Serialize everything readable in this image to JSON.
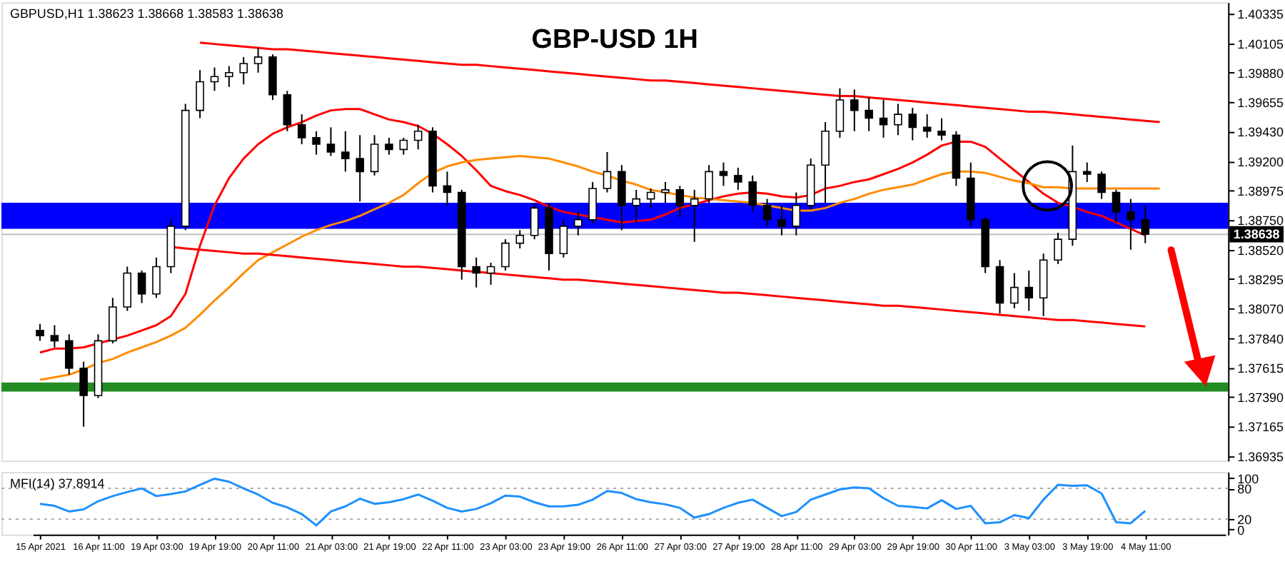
{
  "chart_data": [
    {
      "type": "candlestick",
      "title": "GBP-USD 1H",
      "annotations": [
        "GBPUSD,H1  1.38623 1.38668 1.38583 1.38638"
      ],
      "color": "#000000",
      "categories": [
        null,
        null,
        null,
        null,
        null,
        null,
        null,
        null,
        null,
        null,
        null,
        null,
        null,
        null,
        null,
        null,
        null,
        null,
        null,
        null,
        null,
        null,
        null,
        null,
        null,
        null,
        null,
        null,
        null,
        null,
        null,
        null,
        null,
        null,
        null,
        null,
        null,
        null,
        null,
        null,
        null,
        null,
        null,
        null,
        null,
        null,
        null,
        null,
        null,
        null,
        null,
        null,
        null,
        null,
        null,
        null,
        null,
        null,
        null,
        null,
        null,
        null,
        null,
        null,
        null,
        null,
        null,
        null,
        null,
        null,
        null,
        null,
        null,
        null,
        null,
        null,
        null,
        null,
        null,
        null,
        null,
        null
      ],
      "ohlc": [
        [
          1.379,
          1.3795,
          1.3782,
          1.3786
        ],
        [
          1.3786,
          1.3794,
          1.3777,
          1.3782
        ],
        [
          1.3782,
          1.3787,
          1.3756,
          1.3761
        ],
        [
          1.3761,
          1.3766,
          1.3716,
          1.374
        ],
        [
          1.374,
          1.3787,
          1.3738,
          1.3782
        ],
        [
          1.3782,
          1.3815,
          1.378,
          1.3808
        ],
        [
          1.3808,
          1.3839,
          1.3805,
          1.3834
        ],
        [
          1.3834,
          1.3836,
          1.3811,
          1.3818
        ],
        [
          1.3818,
          1.3846,
          1.3815,
          1.3839
        ],
        [
          1.3839,
          1.3875,
          1.3834,
          1.387
        ],
        [
          1.387,
          1.3964,
          1.3867,
          1.3959
        ],
        [
          1.3959,
          1.399,
          1.3953,
          1.3981
        ],
        [
          1.3981,
          1.3992,
          1.3974,
          1.3985
        ],
        [
          1.3985,
          1.3993,
          1.3977,
          1.3988
        ],
        [
          1.3988,
          1.4,
          1.3979,
          1.3995
        ],
        [
          1.3995,
          1.4007,
          1.3988,
          1.4
        ],
        [
          1.4,
          1.4002,
          1.3967,
          1.3971
        ],
        [
          1.3971,
          1.3974,
          1.3943,
          1.3948
        ],
        [
          1.3948,
          1.3956,
          1.3933,
          1.3938
        ],
        [
          1.3938,
          1.3943,
          1.3925,
          1.3933
        ],
        [
          1.3933,
          1.3946,
          1.3924,
          1.3927
        ],
        [
          1.3927,
          1.3943,
          1.3912,
          1.3922
        ],
        [
          1.3922,
          1.394,
          1.3889,
          1.3912
        ],
        [
          1.3912,
          1.394,
          1.3909,
          1.3933
        ],
        [
          1.3933,
          1.3938,
          1.3925,
          1.3929
        ],
        [
          1.3929,
          1.3938,
          1.3925,
          1.3936
        ],
        [
          1.3936,
          1.3948,
          1.3929,
          1.3943
        ],
        [
          1.3943,
          1.3946,
          1.3896,
          1.3901
        ],
        [
          1.3901,
          1.3912,
          1.3886,
          1.3896
        ],
        [
          1.3896,
          1.3898,
          1.3829,
          1.3839
        ],
        [
          1.3839,
          1.3846,
          1.3823,
          1.3834
        ],
        [
          1.3834,
          1.3842,
          1.3825,
          1.3839
        ],
        [
          1.3839,
          1.386,
          1.3836,
          1.3857
        ],
        [
          1.3857,
          1.3867,
          1.3853,
          1.3863
        ],
        [
          1.3863,
          1.3888,
          1.386,
          1.3884
        ],
        [
          1.3884,
          1.3888,
          1.3836,
          1.3849
        ],
        [
          1.3849,
          1.3875,
          1.3846,
          1.387
        ],
        [
          1.387,
          1.3881,
          1.3863,
          1.3875
        ],
        [
          1.3875,
          1.3904,
          1.3872,
          1.3899
        ],
        [
          1.3899,
          1.3927,
          1.3896,
          1.3912
        ],
        [
          1.3912,
          1.3917,
          1.3867,
          1.3886
        ],
        [
          1.3886,
          1.3898,
          1.3873,
          1.3891
        ],
        [
          1.3891,
          1.3899,
          1.3884,
          1.3896
        ],
        [
          1.3896,
          1.3904,
          1.3888,
          1.3898
        ],
        [
          1.3898,
          1.3901,
          1.3877,
          1.3886
        ],
        [
          1.3886,
          1.3898,
          1.3858,
          1.3891
        ],
        [
          1.3891,
          1.3917,
          1.3888,
          1.3912
        ],
        [
          1.3912,
          1.3919,
          1.3901,
          1.3909
        ],
        [
          1.3909,
          1.3915,
          1.3898,
          1.3904
        ],
        [
          1.3904,
          1.3909,
          1.3881,
          1.3886
        ],
        [
          1.3886,
          1.3891,
          1.387,
          1.3875
        ],
        [
          1.3875,
          1.3886,
          1.3863,
          1.387
        ],
        [
          1.387,
          1.3896,
          1.3863,
          1.3886
        ],
        [
          1.3886,
          1.3922,
          1.3883,
          1.3917
        ],
        [
          1.3917,
          1.395,
          1.3888,
          1.3943
        ],
        [
          1.3943,
          1.3976,
          1.3938,
          1.3967
        ],
        [
          1.3967,
          1.3975,
          1.3943,
          1.3959
        ],
        [
          1.3959,
          1.3969,
          1.3943,
          1.3953
        ],
        [
          1.3953,
          1.3967,
          1.3938,
          1.3948
        ],
        [
          1.3948,
          1.3964,
          1.394,
          1.3956
        ],
        [
          1.3956,
          1.3961,
          1.3936,
          1.3946
        ],
        [
          1.3946,
          1.3956,
          1.3938,
          1.3943
        ],
        [
          1.3943,
          1.3953,
          1.3936,
          1.394
        ],
        [
          1.394,
          1.3943,
          1.3901,
          1.3907
        ],
        [
          1.3907,
          1.3919,
          1.387,
          1.3875
        ],
        [
          1.3875,
          1.3877,
          1.3834,
          1.3839
        ],
        [
          1.3839,
          1.3844,
          1.3803,
          1.3811
        ],
        [
          1.3811,
          1.3834,
          1.3807,
          1.3823
        ],
        [
          1.3823,
          1.3836,
          1.3805,
          1.3815
        ],
        [
          1.3815,
          1.3849,
          1.3801,
          1.3844
        ],
        [
          1.3844,
          1.3865,
          1.3841,
          1.386
        ],
        [
          1.386,
          1.3932,
          1.3855,
          1.3912
        ],
        [
          1.3912,
          1.3919,
          1.3904,
          1.391
        ],
        [
          1.391,
          1.3912,
          1.3891,
          1.3896
        ],
        [
          1.3896,
          1.3898,
          1.3873,
          1.3881
        ],
        [
          1.3881,
          1.3891,
          1.3852,
          1.3875
        ],
        [
          1.3875,
          1.3886,
          1.3857,
          1.38638
        ],
        null,
        null,
        null,
        null,
        null
      ],
      "series": [
        {
          "type": "line",
          "color": "#ff0000",
          "values": [
            1.3773,
            1.3776,
            1.3776,
            1.3777,
            1.378,
            1.3783,
            1.3786,
            1.379,
            1.3794,
            1.3801,
            1.3818,
            1.3855,
            1.3886,
            1.3907,
            1.3922,
            1.3933,
            1.3941,
            1.3946,
            1.395,
            1.3955,
            1.3959,
            1.396,
            1.396,
            1.3956,
            1.3952,
            1.395,
            1.3947,
            1.3941,
            1.3933,
            1.3924,
            1.3913,
            1.3901,
            1.3897,
            1.3894,
            1.389,
            1.3885,
            1.3881,
            1.3879,
            1.3877,
            1.3875,
            1.3873,
            1.3874,
            1.3875,
            1.3879,
            1.3884,
            1.3887,
            1.389,
            1.3893,
            1.3895,
            1.3896,
            1.3895,
            1.3893,
            1.3892,
            1.3894,
            1.3899,
            1.3901,
            1.3904,
            1.3906,
            1.391,
            1.3914,
            1.3919,
            1.3925,
            1.3932,
            1.3935,
            1.3935,
            1.3931,
            1.3922,
            1.3913,
            1.3904,
            1.3895,
            1.3888,
            1.3885,
            1.3881,
            1.3878,
            1.3873,
            1.3868,
            1.3863,
            null,
            null,
            null,
            null,
            null
          ]
        },
        {
          "type": "line",
          "color": "#ff8c00",
          "values": [
            1.3752,
            1.3754,
            1.3756,
            1.376,
            1.3765,
            1.3768,
            1.3773,
            1.3777,
            1.3781,
            1.3786,
            1.3792,
            1.3802,
            1.3813,
            1.3823,
            1.3834,
            1.3844,
            1.385,
            1.3856,
            1.3862,
            1.3867,
            1.3871,
            1.3874,
            1.3878,
            1.3883,
            1.3888,
            1.3894,
            1.3903,
            1.3911,
            1.3916,
            1.3919,
            1.3921,
            1.3922,
            1.3923,
            1.3924,
            1.3923,
            1.3922,
            1.3919,
            1.3916,
            1.3912,
            1.3909,
            1.3905,
            1.3902,
            1.3898,
            1.3896,
            1.3894,
            1.3892,
            1.3891,
            1.389,
            1.3889,
            1.3888,
            1.3886,
            1.3884,
            1.3882,
            1.3882,
            1.3884,
            1.3888,
            1.3891,
            1.3895,
            1.3898,
            1.39,
            1.3902,
            1.3906,
            1.391,
            1.3912,
            1.3912,
            1.3911,
            1.3908,
            1.3905,
            1.3903,
            1.39,
            1.39,
            1.3899,
            1.3899,
            1.3899,
            1.3899,
            1.3899,
            1.3899,
            1.3899,
            null,
            null,
            null,
            null
          ]
        },
        {
          "type": "line",
          "color": "#ff0000",
          "values": [
            null,
            null,
            null,
            null,
            null,
            null,
            null,
            null,
            null,
            null,
            null,
            1.4011,
            1.401,
            1.4009,
            1.4008,
            1.4007,
            1.4006,
            1.4006,
            1.4005,
            1.4004,
            1.4003,
            1.4002,
            1.4001,
            1.4,
            1.3999,
            1.3998,
            1.3997,
            1.3996,
            1.3995,
            1.3994,
            1.3994,
            1.3993,
            1.3992,
            1.3991,
            1.399,
            1.3989,
            1.3988,
            1.3987,
            1.3986,
            1.3985,
            1.3984,
            1.3983,
            1.3982,
            1.3982,
            1.3981,
            1.398,
            1.3979,
            1.3978,
            1.3977,
            1.3976,
            1.3975,
            1.3974,
            1.3973,
            1.3972,
            1.3971,
            1.397,
            1.397,
            1.3969,
            1.3968,
            1.3967,
            1.3966,
            1.3965,
            1.3964,
            1.3963,
            1.3962,
            1.3961,
            1.396,
            1.3959,
            1.3958,
            1.3958,
            1.3957,
            1.3956,
            1.3955,
            1.3954,
            1.3953,
            1.3952,
            1.3951,
            1.395,
            null,
            null,
            null,
            null
          ]
        },
        {
          "type": "line",
          "color": "#ff0000",
          "values": [
            null,
            null,
            null,
            null,
            null,
            null,
            null,
            null,
            null,
            1.3854,
            1.3853,
            1.3852,
            1.3851,
            1.385,
            1.3849,
            1.3849,
            1.3848,
            1.3847,
            1.3846,
            1.3845,
            1.3844,
            1.3843,
            1.3842,
            1.3841,
            1.384,
            1.3839,
            1.3839,
            1.3838,
            1.3837,
            1.3836,
            1.3835,
            1.3834,
            1.3833,
            1.3832,
            1.3831,
            1.383,
            1.3829,
            1.3829,
            1.3828,
            1.3827,
            1.3826,
            1.3825,
            1.3824,
            1.3823,
            1.3822,
            1.3821,
            1.382,
            1.3819,
            1.3819,
            1.3818,
            1.3817,
            1.3816,
            1.3815,
            1.3814,
            1.3813,
            1.3812,
            1.3811,
            1.381,
            1.3809,
            1.3809,
            1.3808,
            1.3807,
            1.3806,
            1.3805,
            1.3804,
            1.3803,
            1.3802,
            1.3801,
            1.38,
            1.3799,
            1.3798,
            1.3798,
            1.3797,
            1.3796,
            1.3795,
            1.3794,
            1.3793,
            null,
            null,
            null,
            null,
            null
          ]
        }
      ],
      "ylim": [
        1.369,
        1.4042
      ],
      "yticks": [
        {
          "value": 1.40335,
          "label": "1.40335"
        },
        {
          "value": 1.40105,
          "label": "1.40105"
        },
        {
          "value": 1.3988,
          "label": "1.39880"
        },
        {
          "value": 1.39655,
          "label": "1.39655"
        },
        {
          "value": 1.3943,
          "label": "1.39430"
        },
        {
          "value": 1.392,
          "label": "1.39200"
        },
        {
          "value": 1.38975,
          "label": "1.38975"
        },
        {
          "value": 1.3875,
          "label": "1.38750"
        },
        {
          "value": 1.3852,
          "label": "1.38520"
        },
        {
          "value": 1.38295,
          "label": "1.38295"
        },
        {
          "value": 1.3807,
          "label": "1.38070"
        },
        {
          "value": 1.3784,
          "label": "1.37840"
        },
        {
          "value": 1.37615,
          "label": "1.37615"
        },
        {
          "value": 1.3739,
          "label": "1.37390"
        },
        {
          "value": 1.37165,
          "label": "1.37165"
        },
        {
          "value": 1.36935,
          "label": "1.36935"
        }
      ],
      "ref_lines": [
        {
          "axis": "y",
          "value": 1.38638,
          "label": "1.38638",
          "color": "#c0c0c0"
        }
      ],
      "bands": [
        {
          "axis": "y",
          "from": 1.3743,
          "to": 1.375,
          "color": "#228b22"
        },
        {
          "axis": "y",
          "from": 1.3868,
          "to": 1.3888,
          "color": "#0000ff"
        }
      ],
      "tick_labels": "y"
    },
    {
      "type": "line",
      "annotations": [
        "MFI(14) 37.8914"
      ],
      "categories": [
        "15 Apr 2021",
        null,
        null,
        null,
        "16 Apr 11:00",
        null,
        null,
        null,
        "19 Apr 03:00",
        null,
        null,
        null,
        "19 Apr 19:00",
        null,
        null,
        null,
        "20 Apr 11:00",
        null,
        null,
        null,
        "21 Apr 03:00",
        null,
        null,
        null,
        "21 Apr 19:00",
        null,
        null,
        null,
        "22 Apr 11:00",
        null,
        null,
        null,
        "23 Apr 03:00",
        null,
        null,
        null,
        "23 Apr 19:00",
        null,
        null,
        null,
        "26 Apr 11:00",
        null,
        null,
        null,
        "27 Apr 03:00",
        null,
        null,
        null,
        "27 Apr 19:00",
        null,
        null,
        null,
        "28 Apr 11:00",
        null,
        null,
        null,
        "29 Apr 03:00",
        null,
        null,
        null,
        "29 Apr 19:00",
        null,
        null,
        null,
        "30 Apr 11:00",
        null,
        null,
        null,
        "3 May 03:00",
        null,
        null,
        null,
        "3 May 19:00",
        null,
        null,
        null,
        "4 May 11:00",
        null,
        null,
        null,
        null,
        null
      ],
      "series": [
        {
          "color": "#1e90ff",
          "values": [
            50,
            46,
            35,
            39,
            55,
            65,
            73,
            80,
            65,
            69,
            74,
            87,
            99,
            93,
            80,
            68,
            52,
            43,
            30,
            8,
            35,
            45,
            60,
            50,
            53,
            59,
            68,
            56,
            42,
            35,
            40,
            51,
            66,
            64,
            53,
            45,
            45,
            48,
            58,
            75,
            71,
            59,
            53,
            49,
            42,
            23,
            30,
            42,
            52,
            58,
            42,
            26,
            34,
            58,
            68,
            78,
            82,
            80,
            61,
            46,
            44,
            41,
            57,
            40,
            46,
            12,
            14,
            28,
            22,
            58,
            87,
            85,
            86,
            70,
            14,
            12,
            36,
            null,
            null,
            null,
            null,
            null
          ]
        }
      ],
      "ylim": [
        -10,
        112
      ],
      "yticks": [
        0,
        20,
        80,
        100
      ],
      "ref_lines": [
        {
          "axis": "y",
          "value": 20,
          "color": "#aaaaaa",
          "line_style": "dotted"
        },
        {
          "axis": "y",
          "value": 80,
          "color": "#aaaaaa",
          "line_style": "dotted"
        }
      ]
    }
  ]
}
